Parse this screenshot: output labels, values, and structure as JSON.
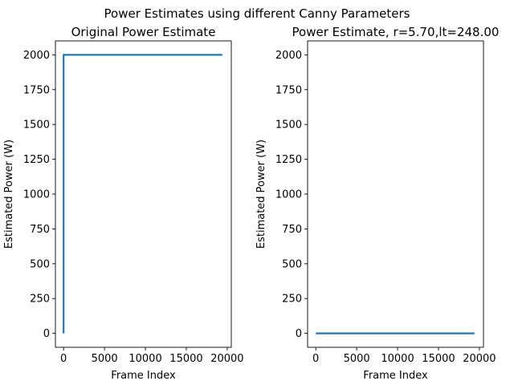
{
  "chart_data": {
    "suptitle": "Power Estimates using different Canny Parameters",
    "charts": [
      {
        "type": "line",
        "title": "Original Power Estimate",
        "xlabel": "Frame Index",
        "ylabel": "Estimated Power (W)",
        "xlim": [
          -1000,
          20500
        ],
        "ylim": [
          -100,
          2100
        ],
        "xticks": [
          0,
          5000,
          10000,
          15000,
          20000
        ],
        "yticks": [
          0,
          250,
          500,
          750,
          1000,
          1250,
          1500,
          1750,
          2000
        ],
        "color": "#1f77b4",
        "series": [
          {
            "x": [
              0,
              0,
              19400
            ],
            "y": [
              0,
              2000,
              2000
            ]
          }
        ]
      },
      {
        "type": "line",
        "title": "Power Estimate, r=5.70,lt=248.00",
        "xlabel": "Frame Index",
        "ylabel": "Estimated Power (W)",
        "xlim": [
          -1000,
          20500
        ],
        "ylim": [
          -100,
          2100
        ],
        "xticks": [
          0,
          5000,
          10000,
          15000,
          20000
        ],
        "yticks": [
          0,
          250,
          500,
          750,
          1000,
          1250,
          1500,
          1750,
          2000
        ],
        "color": "#1f77b4",
        "series": [
          {
            "x": [
              0,
              19400
            ],
            "y": [
              0,
              0
            ]
          }
        ]
      }
    ]
  }
}
